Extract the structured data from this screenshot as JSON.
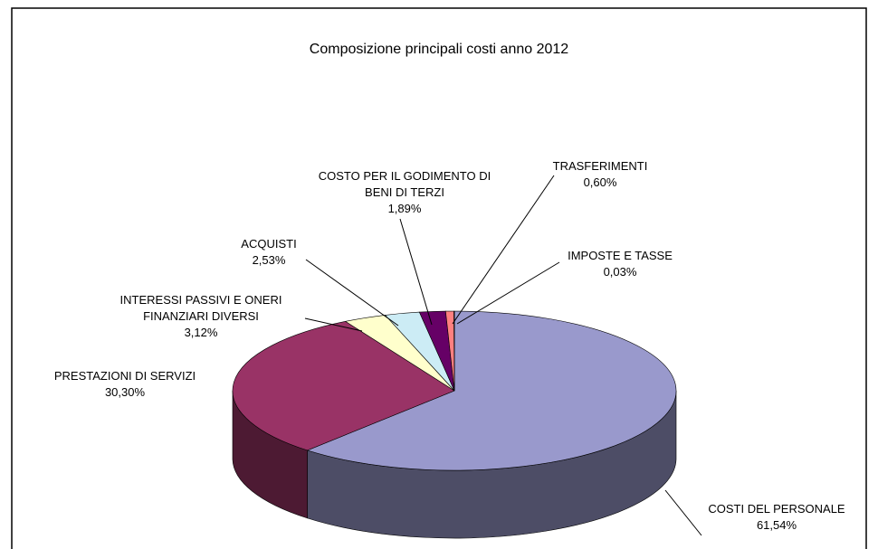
{
  "chart_data": {
    "type": "pie3d",
    "title": "Composizione principali costi anno 2012",
    "categories": [
      "COSTI DEL PERSONALE",
      "PRESTAZIONI DI SERVIZI",
      "INTERESSI PASSIVI E ONERI FINANZIARI DIVERSI",
      "ACQUISTI",
      "COSTO PER IL GODIMENTO DI BENI DI TERZI",
      "TRASFERIMENTI",
      "IMPOSTE E TASSE"
    ],
    "values": [
      61.54,
      30.3,
      3.12,
      2.53,
      1.89,
      0.6,
      0.03
    ],
    "value_labels": [
      "61,54%",
      "30,30%",
      "3,12%",
      "2,53%",
      "1,89%",
      "0,60%",
      "0,03%"
    ],
    "colors": [
      "#9999cc",
      "#993366",
      "#ffffcc",
      "#ccecf5",
      "#660066",
      "#ff8080",
      "#0066cc"
    ]
  }
}
